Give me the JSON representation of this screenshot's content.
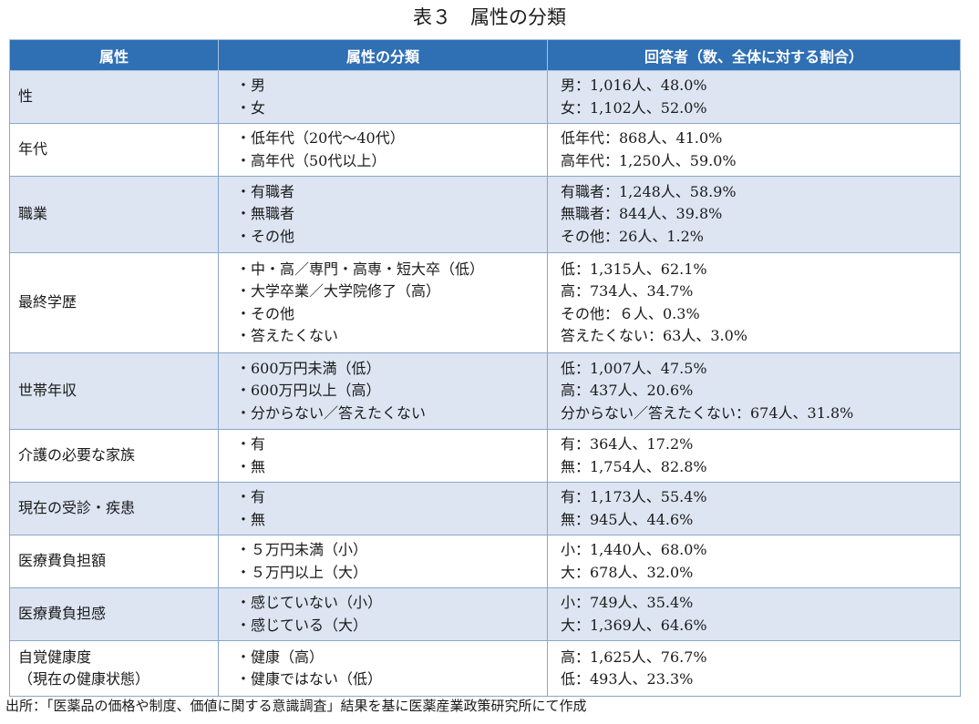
{
  "title": "表３　属性の分類",
  "headers": [
    "属性",
    "属性の分類",
    "回答者（数、全体に対する割合）"
  ],
  "rows": [
    {
      "attr": [
        "性"
      ],
      "classes": [
        "・男",
        "・女"
      ],
      "responses": [
        "男：1,016人、48.0%",
        "女：1,102人、52.0%"
      ]
    },
    {
      "attr": [
        "年代"
      ],
      "classes": [
        "・低年代（20代～40代）",
        "・高年代（50代以上）"
      ],
      "responses": [
        "低年代：868人、41.0%",
        "高年代：1,250人、59.0%"
      ]
    },
    {
      "attr": [
        "職業"
      ],
      "classes": [
        "・有職者",
        "・無職者",
        "・その他"
      ],
      "responses": [
        "有職者：1,248人、58.9%",
        "無職者：844人、39.8%",
        "その他：26人、1.2%"
      ]
    },
    {
      "attr": [
        "最終学歴"
      ],
      "classes": [
        "・中・高／専門・高専・短大卒（低）",
        "・大学卒業／大学院修了（高）",
        "・その他",
        "・答えたくない"
      ],
      "responses": [
        "低：1,315人、62.1%",
        "高：734人、34.7%",
        "その他：６人、0.3%",
        "答えたくない：63人、3.0%"
      ]
    },
    {
      "attr": [
        "世帯年収"
      ],
      "classes": [
        "・600万円未満（低）",
        "・600万円以上（高）",
        "・分からない／答えたくない"
      ],
      "responses": [
        "低：1,007人、47.5%",
        "高：437人、20.6%",
        "分からない／答えたくない：674人、31.8%"
      ]
    },
    {
      "attr": [
        "介護の必要な家族"
      ],
      "classes": [
        "・有",
        "・無"
      ],
      "responses": [
        "有：364人、17.2%",
        "無：1,754人、82.8%"
      ]
    },
    {
      "attr": [
        "現在の受診・疾患"
      ],
      "classes": [
        "・有",
        "・無"
      ],
      "responses": [
        "有：1,173人、55.4%",
        "無：945人、44.6%"
      ]
    },
    {
      "attr": [
        "医療費負担額"
      ],
      "classes": [
        "・５万円未満（小）",
        "・５万円以上（大）"
      ],
      "responses": [
        "小：1,440人、68.0%",
        "大：678人、32.0%"
      ]
    },
    {
      "attr": [
        "医療費負担感"
      ],
      "classes": [
        "・感じていない（小）",
        "・感じている（大）"
      ],
      "responses": [
        "小：749人、35.4%",
        "大：1,369人、64.6%"
      ]
    },
    {
      "attr": [
        "自覚健康度",
        "（現在の健康状態）"
      ],
      "classes": [
        "・健康（高）",
        "・健康ではない（低）"
      ],
      "responses": [
        "高：1,625人、76.7%",
        "低：493人、23.3%"
      ]
    }
  ],
  "source": "出所：「医薬品の価格や制度、価値に関する意識調査」結果を基に医薬産業政策研究所にて作成"
}
